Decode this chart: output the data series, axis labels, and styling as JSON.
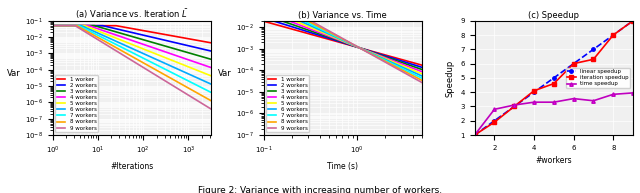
{
  "worker_colors": [
    "red",
    "blue",
    "green",
    "magenta",
    "yellow",
    "#00aaff",
    "cyan",
    "orange",
    "#cc6699"
  ],
  "worker_labels": [
    "1 worker",
    "2 workers",
    "3 workers",
    "4 workers",
    "5 workers",
    "6 workers",
    "7 workers",
    "8 workers",
    "9 workers"
  ],
  "speedup_workers": [
    1,
    2,
    3,
    4,
    5,
    6,
    7,
    8,
    9
  ],
  "linear_speedup": [
    1,
    2,
    3,
    4,
    5,
    6,
    7,
    8,
    9
  ],
  "iteration_speedup": [
    1,
    1.9,
    3.0,
    4.1,
    4.6,
    6.0,
    6.3,
    8.0,
    9.0
  ],
  "time_speedup": [
    1,
    2.8,
    3.1,
    3.3,
    3.3,
    3.55,
    3.4,
    3.85,
    3.95
  ],
  "sub_titles": [
    "(a) Variance vs. Iteration $\\bar{L}$",
    "(b) Variance vs. Time",
    "(c) Speedup"
  ],
  "fig_title": "Figure 2: Variance with increasing number of workers.",
  "xlabel_a": "#Iterations",
  "xlabel_b": "Time (s)",
  "xlabel_c": "#workers",
  "ylabel_var": "Var",
  "ylabel_speedup": "Speedup",
  "background_color": "#f0f0f0"
}
